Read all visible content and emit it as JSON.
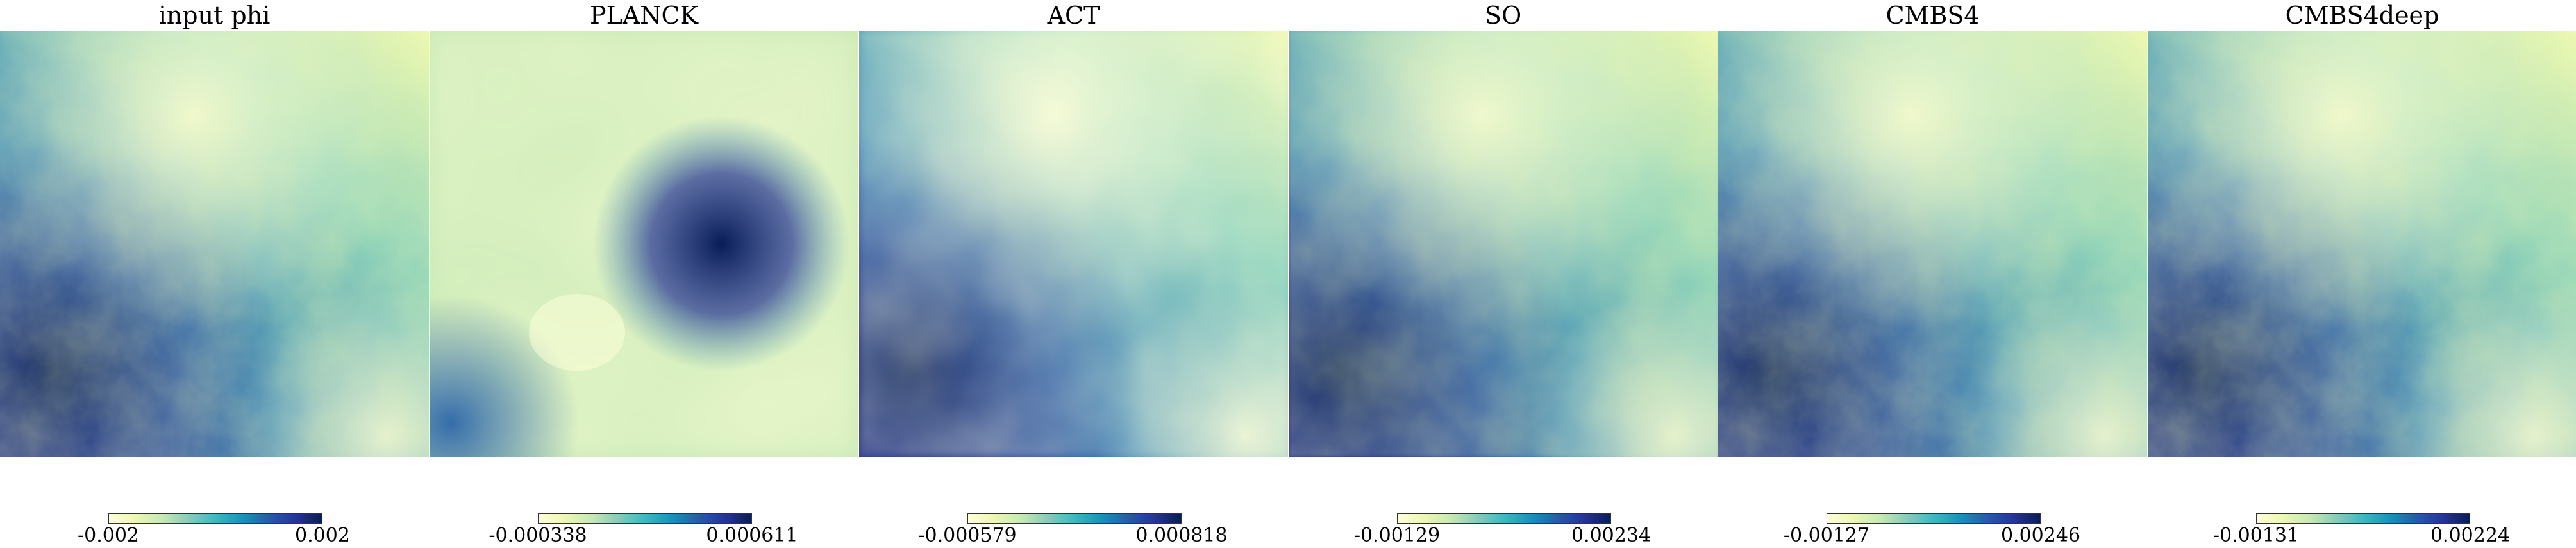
{
  "figure": {
    "colormap": "YlGnBu",
    "colorbar_colors": [
      "#ffffd9",
      "#edf8b1",
      "#c7e9b4",
      "#7fcdbb",
      "#41b6c4",
      "#1d91c0",
      "#225ea8",
      "#253494",
      "#081d58"
    ],
    "panels": [
      {
        "title": "input phi",
        "colorbar": {
          "min": "-0.002",
          "max": "0.002"
        }
      },
      {
        "title": "PLANCK",
        "colorbar": {
          "min": "-0.000338",
          "max": "0.000611"
        }
      },
      {
        "title": "ACT",
        "colorbar": {
          "min": "-0.000579",
          "max": "0.000818"
        }
      },
      {
        "title": "SO",
        "colorbar": {
          "min": "-0.00129",
          "max": "0.00234"
        }
      },
      {
        "title": "CMBS4",
        "colorbar": {
          "min": "-0.00127",
          "max": "0.00246"
        }
      },
      {
        "title": "CMBS4deep",
        "colorbar": {
          "min": "-0.00131",
          "max": "0.00224"
        }
      }
    ]
  }
}
